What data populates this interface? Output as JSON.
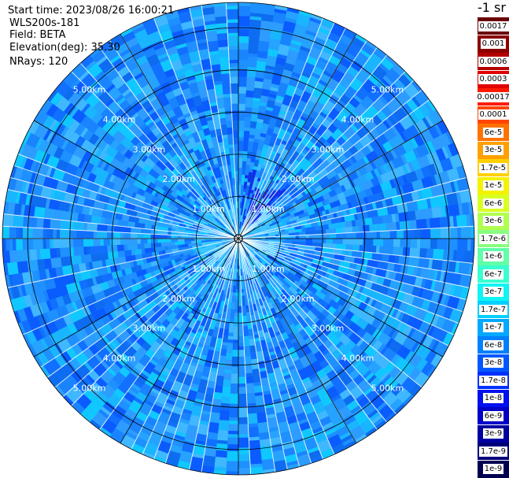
{
  "header": {
    "start_time": "Start time: 2023/08/26 16:00:21",
    "instrument": "WLS200s-181",
    "field": "Field: BETA",
    "elevation": "Elevation(deg): 35.30",
    "nrays": "NRays: 120"
  },
  "plot": {
    "n_rays": 120,
    "range_rings": [
      1.0,
      2.0,
      3.0,
      4.0,
      5.0
    ],
    "ring_label_suffix": "km",
    "max_range_km": 5.6
  },
  "colorbar": {
    "title": "-1 sr",
    "entries": [
      {
        "label": "0.0017",
        "color": "#6b0000"
      },
      {
        "label": "0.001",
        "color": "#8b0000"
      },
      {
        "label": "0.0006",
        "color": "#b30000"
      },
      {
        "label": "0.0003",
        "color": "#e00000"
      },
      {
        "label": "0.00017",
        "color": "#ff1a00"
      },
      {
        "label": "0.0001",
        "color": "#ff4500"
      },
      {
        "label": "6e-5",
        "color": "#ff7200"
      },
      {
        "label": "3e-5",
        "color": "#ffa000"
      },
      {
        "label": "1.7e-5",
        "color": "#ffd000"
      },
      {
        "label": "1e-5",
        "color": "#f3f300"
      },
      {
        "label": "6e-6",
        "color": "#d8ff20"
      },
      {
        "label": "3e-6",
        "color": "#b0ff50"
      },
      {
        "label": "1.7e-6",
        "color": "#88ff80"
      },
      {
        "label": "1e-6",
        "color": "#60ffa8"
      },
      {
        "label": "6e-7",
        "color": "#38ffd0"
      },
      {
        "label": "3e-7",
        "color": "#10f4f4"
      },
      {
        "label": "1.7e-7",
        "color": "#00d0ff"
      },
      {
        "label": "1e-7",
        "color": "#00a8ff"
      },
      {
        "label": "6e-8",
        "color": "#0080ff"
      },
      {
        "label": "3e-8",
        "color": "#0058ff"
      },
      {
        "label": "1.7e-8",
        "color": "#0030ff"
      },
      {
        "label": "1e-8",
        "color": "#0010ef"
      },
      {
        "label": "6e-9",
        "color": "#0000c8"
      },
      {
        "label": "3e-9",
        "color": "#0000a0"
      },
      {
        "label": "1.7e-9",
        "color": "#000078"
      },
      {
        "label": "1e-9",
        "color": "#000050"
      }
    ]
  },
  "colors": {
    "background_field": "#1e90ff",
    "ring_color": "#000000",
    "ray_gap_color": "#ffffff"
  }
}
